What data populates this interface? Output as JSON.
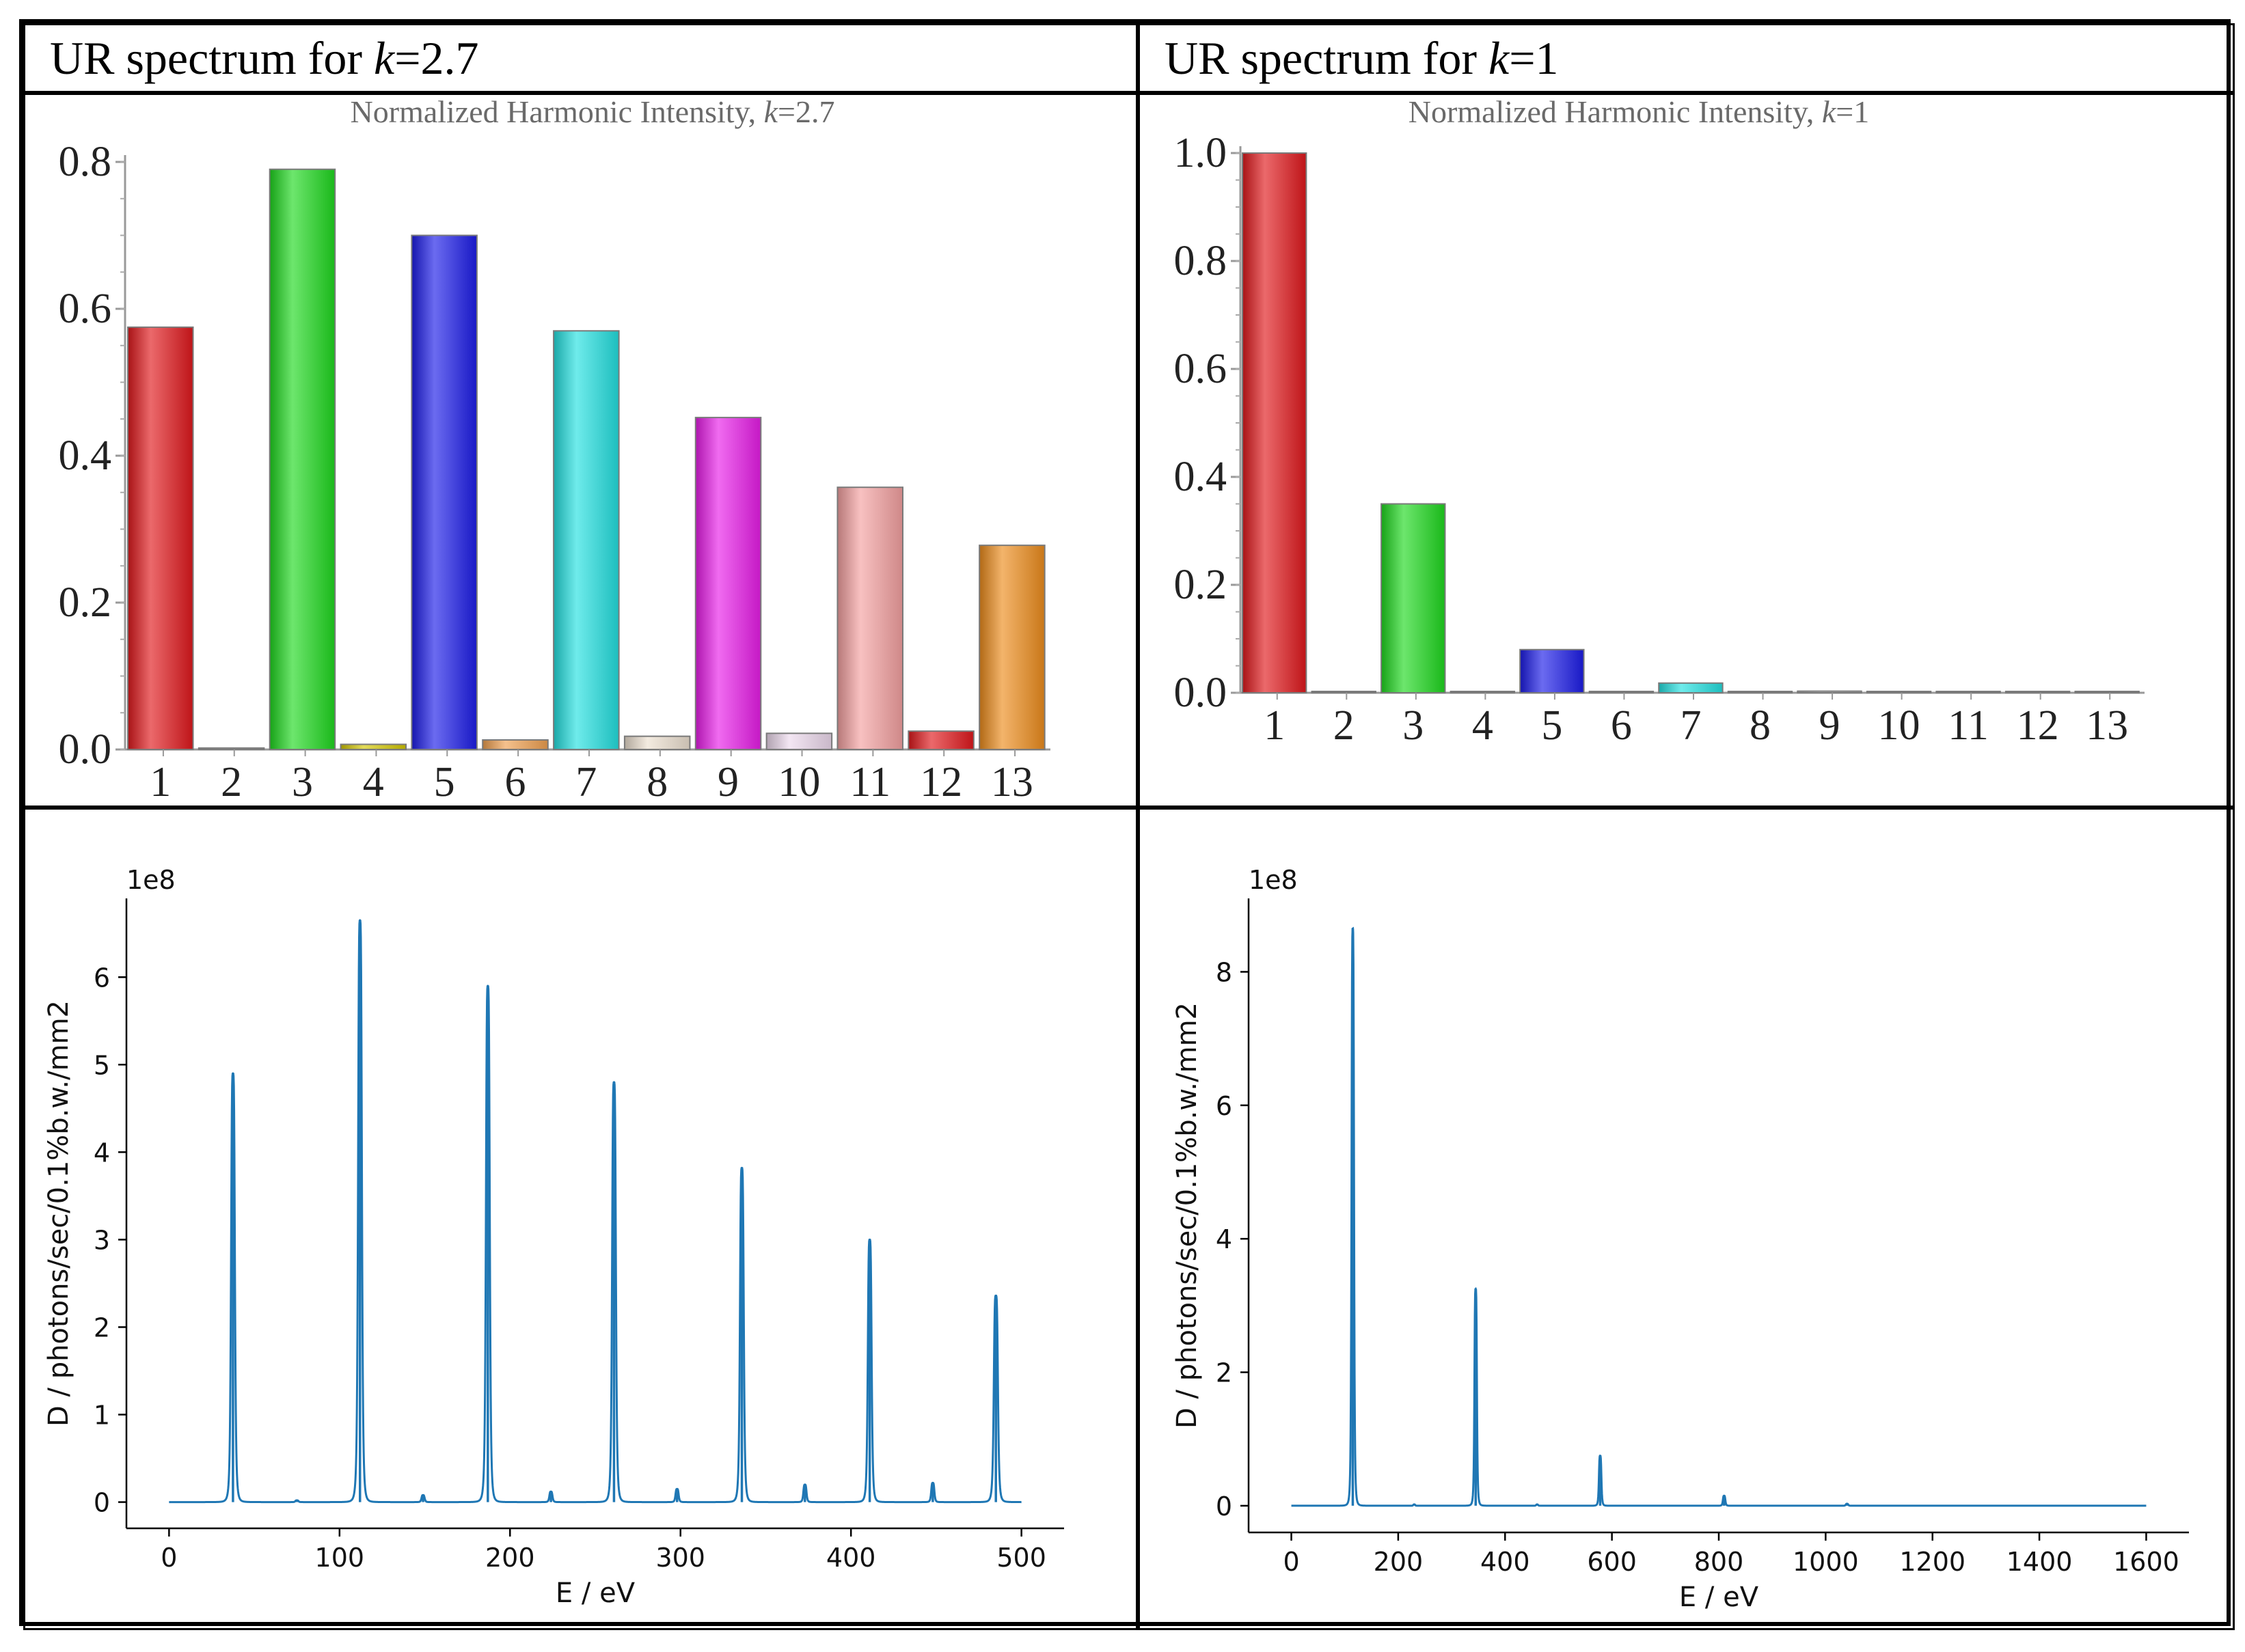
{
  "panels": {
    "left_title": {
      "prefix": "UR spectrum for ",
      "k_symbol": "k",
      "suffix": "=2.7"
    },
    "right_title": {
      "prefix": "UR spectrum for ",
      "k_symbol": "k",
      "suffix": "=1"
    }
  },
  "chart_data": [
    {
      "id": "bar-k27",
      "type": "bar",
      "title": "Normalized Harmonic Intensity, k=2.7",
      "title_prefix": "Normalized Harmonic Intensity, ",
      "title_k": "k",
      "title_suffix": "=2.7",
      "categories": [
        "1",
        "2",
        "3",
        "4",
        "5",
        "6",
        "7",
        "8",
        "9",
        "10",
        "11",
        "12",
        "13"
      ],
      "values": [
        0.575,
        0.002,
        0.79,
        0.007,
        0.7,
        0.013,
        0.57,
        0.018,
        0.452,
        0.022,
        0.357,
        0.025,
        0.278
      ],
      "colors": [
        "#e0181c",
        "#b8b8b8",
        "#1ed81e",
        "#d4c800",
        "#1c1ce8",
        "#f0a050",
        "#22e0e0",
        "#ece0d0",
        "#e81ce8",
        "#ecd8ec",
        "#f4a0a0",
        "#e0181c",
        "#ec8c1c"
      ],
      "ylim": [
        0,
        0.8
      ],
      "yticks": [
        "0.0",
        "0.2",
        "0.4",
        "0.6",
        "0.8"
      ],
      "ytick_values": [
        0,
        0.2,
        0.4,
        0.6,
        0.8
      ]
    },
    {
      "id": "bar-k1",
      "type": "bar",
      "title": "Normalized Harmonic Intensity, k=1",
      "title_prefix": "Normalized Harmonic Intensity, ",
      "title_k": "k",
      "title_suffix": "=1",
      "categories": [
        "1",
        "2",
        "3",
        "4",
        "5",
        "6",
        "7",
        "8",
        "9",
        "10",
        "11",
        "12",
        "13"
      ],
      "values": [
        1.0,
        0.002,
        0.35,
        0.002,
        0.08,
        0.001,
        0.018,
        0.001,
        0.003,
        0.001,
        0.0005,
        0.0005,
        0.0005
      ],
      "colors": [
        "#e0181c",
        "#b8b8b8",
        "#1ed81e",
        "#c0c0c0",
        "#1c1ce8",
        "#d8d8d8",
        "#22e0e0",
        "#d8d8d8",
        "#c8c8c8",
        "#d8d8d8",
        "#d8d8d8",
        "#d8d8d8",
        "#d8d8d8"
      ],
      "ylim": [
        0,
        1.0
      ],
      "yticks": [
        "0.0",
        "0.2",
        "0.4",
        "0.6",
        "0.8",
        "1.0"
      ],
      "ytick_values": [
        0,
        0.2,
        0.4,
        0.6,
        0.8,
        1.0
      ]
    },
    {
      "id": "line-k27",
      "type": "line",
      "xlabel": "E / eV",
      "ylabel": "D / photons/sec/0.1%b.w./mm2",
      "y_exponent_label": "1e8",
      "xlim": [
        -25,
        525
      ],
      "ylim": [
        -0.3,
        6.9
      ],
      "xticks": [
        "0",
        "100",
        "200",
        "300",
        "400",
        "500"
      ],
      "xtick_values": [
        0,
        100,
        200,
        300,
        400,
        500
      ],
      "yticks": [
        "0",
        "1",
        "2",
        "3",
        "4",
        "5",
        "6"
      ],
      "ytick_values": [
        0,
        1,
        2,
        3,
        4,
        5,
        6
      ],
      "x_range": [
        0,
        500
      ],
      "line_color": "#1f77b4",
      "peaks": [
        {
          "x": 37.5,
          "y": 4.9,
          "w": 1.2
        },
        {
          "x": 75,
          "y": 0.02,
          "w": 1.0
        },
        {
          "x": 112,
          "y": 6.65,
          "w": 1.2
        },
        {
          "x": 149,
          "y": 0.08,
          "w": 1.0
        },
        {
          "x": 187,
          "y": 5.9,
          "w": 1.2
        },
        {
          "x": 224,
          "y": 0.12,
          "w": 1.0
        },
        {
          "x": 261,
          "y": 4.8,
          "w": 1.2
        },
        {
          "x": 298,
          "y": 0.15,
          "w": 1.0
        },
        {
          "x": 336,
          "y": 3.82,
          "w": 1.2
        },
        {
          "x": 373,
          "y": 0.2,
          "w": 1.0
        },
        {
          "x": 411,
          "y": 3.0,
          "w": 1.2
        },
        {
          "x": 448,
          "y": 0.22,
          "w": 1.0
        },
        {
          "x": 485,
          "y": 2.36,
          "w": 1.3
        }
      ]
    },
    {
      "id": "line-k1",
      "type": "line",
      "xlabel": "E / eV",
      "ylabel": "D / photons/sec/0.1%b.w./mm2",
      "y_exponent_label": "1e8",
      "xlim": [
        -80,
        1680
      ],
      "ylim": [
        -0.4,
        9.1
      ],
      "xticks": [
        "0",
        "200",
        "400",
        "600",
        "800",
        "1000",
        "1200",
        "1400",
        "1600"
      ],
      "xtick_values": [
        0,
        200,
        400,
        600,
        800,
        1000,
        1200,
        1400,
        1600
      ],
      "yticks": [
        "0",
        "2",
        "4",
        "6",
        "8"
      ],
      "ytick_values": [
        0,
        2,
        4,
        6,
        8
      ],
      "x_range": [
        0,
        1600
      ],
      "line_color": "#1f77b4",
      "peaks": [
        {
          "x": 115,
          "y": 8.65,
          "w": 2.5
        },
        {
          "x": 230,
          "y": 0.02,
          "w": 2.0
        },
        {
          "x": 345,
          "y": 3.25,
          "w": 2.5
        },
        {
          "x": 460,
          "y": 0.02,
          "w": 2.0
        },
        {
          "x": 578,
          "y": 0.75,
          "w": 2.5
        },
        {
          "x": 810,
          "y": 0.15,
          "w": 2.5
        },
        {
          "x": 1040,
          "y": 0.03,
          "w": 2.5
        }
      ]
    }
  ]
}
